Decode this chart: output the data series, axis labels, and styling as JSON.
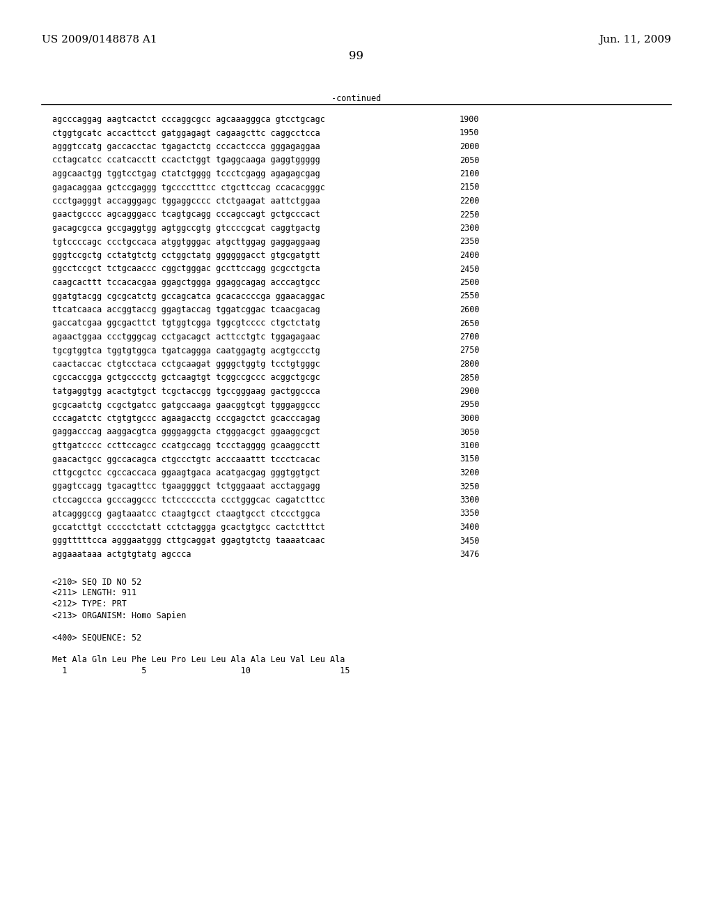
{
  "header_left": "US 2009/0148878 A1",
  "header_right": "Jun. 11, 2009",
  "page_number": "99",
  "continued_label": "-continued",
  "sequence_rows": [
    [
      "agcccaggag aagtcactct cccaggcgcc agcaaagggca gtcctgcagc",
      "1900"
    ],
    [
      "ctggtgcatc accacttcct gatggagagt cagaagcttc caggcctcca",
      "1950"
    ],
    [
      "agggtccatg gaccacctac tgagactctg cccactccca gggagaggaa",
      "2000"
    ],
    [
      "cctagcatcc ccatcacctt ccactctggt tgaggcaaga gaggtggggg",
      "2050"
    ],
    [
      "aggcaactgg tggtcctgag ctatctgggg tccctcgagg agagagcgag",
      "2100"
    ],
    [
      "gagacaggaa gctccgaggg tgcccctttcc ctgcttccag ccacacgggc",
      "2150"
    ],
    [
      "ccctgagggt accagggagc tggaggcccc ctctgaagat aattctggaa",
      "2200"
    ],
    [
      "gaactgcccc agcagggacc tcagtgcagg cccagccagt gctgcccact",
      "2250"
    ],
    [
      "gacagcgcca gccgaggtgg agtggccgtg gtccccgcat caggtgactg",
      "2300"
    ],
    [
      "tgtccccagc ccctgccaca atggtgggac atgcttggag gaggaggaag",
      "2350"
    ],
    [
      "gggtccgctg cctatgtctg cctggctatg ggggggacct gtgcgatgtt",
      "2400"
    ],
    [
      "ggcctccgct tctgcaaccc cggctgggac gccttccagg gcgcctgcta",
      "2450"
    ],
    [
      "caagcacttt tccacacgaa ggagctggga ggaggcagag acccagtgcc",
      "2500"
    ],
    [
      "ggatgtacgg cgcgcatctg gccagcatca gcacaccccga ggaacaggac",
      "2550"
    ],
    [
      "ttcatcaaca accggtaccg ggagtaccag tggatcggac tcaacgacag",
      "2600"
    ],
    [
      "gaccatcgaa ggcgacttct tgtggtcgga tggcgtcccc ctgctctatg",
      "2650"
    ],
    [
      "agaactggaa ccctgggcag cctgacagct acttcctgtc tggagagaac",
      "2700"
    ],
    [
      "tgcgtggtca tggtgtggca tgatcaggga caatggagtg acgtgccctg",
      "2750"
    ],
    [
      "caactaccac ctgtcctaca cctgcaagat ggggctggtg tcctgtgggc",
      "2800"
    ],
    [
      "cgccaccgga gctgcccctg gctcaagtgt tcggccgccc acggctgcgc",
      "2850"
    ],
    [
      "tatgaggtgg acactgtgct tcgctaccgg tgccgggaag gactggccca",
      "2900"
    ],
    [
      "gcgcaatctg ccgctgatcc gatgccaaga gaacggtcgt tgggaggccc",
      "2950"
    ],
    [
      "cccagatctc ctgtgtgccc agaagacctg cccgagctct gcacccagag",
      "3000"
    ],
    [
      "gaggacccag aaggacgtca ggggaggcta ctgggacgct ggaaggcgct",
      "3050"
    ],
    [
      "gttgatcccc ccttccagcc ccatgccagg tccctagggg gcaaggcctt",
      "3100"
    ],
    [
      "gaacactgcc ggccacagca ctgccctgtc acccaaattt tccctcacac",
      "3150"
    ],
    [
      "cttgcgctcc cgccaccaca ggaagtgaca acatgacgag gggtggtgct",
      "3200"
    ],
    [
      "ggagtccagg tgacagttcc tgaaggggct tctgggaaat acctaggagg",
      "3250"
    ],
    [
      "ctccagccca gcccaggccc tctccccccta ccctgggcac cagatcttcc",
      "3300"
    ],
    [
      "atcagggccg gagtaaatcc ctaagtgcct ctaagtgcct ctccctggca",
      "3350"
    ],
    [
      "gccatcttgt ccccctctatt cctctaggga gcactgtgcc cactctttct",
      "3400"
    ],
    [
      "gggtttttcca agggaatggg cttgcaggat ggagtgtctg taaaatcaac",
      "3450"
    ],
    [
      "aggaaataaa actgtgtatg agccca",
      "3476"
    ]
  ],
  "footer_lines": [
    "<210> SEQ ID NO 52",
    "<211> LENGTH: 911",
    "<212> TYPE: PRT",
    "<213> ORGANISM: Homo Sapien",
    "",
    "<400> SEQUENCE: 52",
    "",
    "Met Ala Gln Leu Phe Leu Pro Leu Leu Ala Ala Leu Val Leu Ala",
    "  1               5                   10                  15"
  ],
  "bg_color": "#ffffff",
  "text_color": "#000000",
  "font_size_header": 11,
  "font_size_body": 8.5,
  "font_size_page": 12
}
